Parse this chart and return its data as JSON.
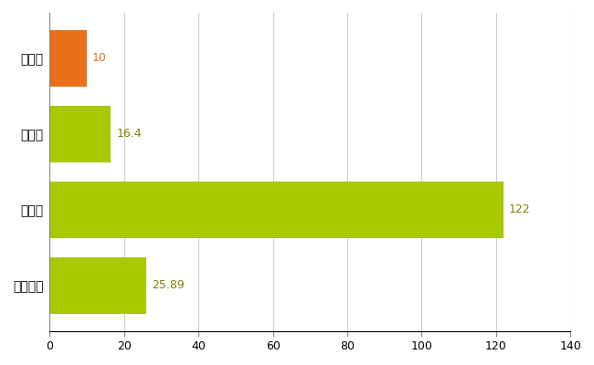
{
  "categories": [
    "鹿島市",
    "県平均",
    "県最大",
    "全国平均"
  ],
  "values": [
    10,
    16.4,
    122,
    25.89
  ],
  "bar_colors": [
    "#E8701A",
    "#A8C800",
    "#A8C800",
    "#A8C800"
  ],
  "label_color_kashima": "#E8701A",
  "label_color_others": "#808000",
  "bar_height": 0.75,
  "xlim": [
    0,
    140
  ],
  "xticks": [
    0,
    20,
    40,
    60,
    80,
    100,
    120,
    140
  ],
  "grid_color": "#cccccc",
  "background_color": "#ffffff",
  "value_labels": [
    "10",
    "16.4",
    "122",
    "25.89"
  ],
  "label_fontsize": 9,
  "tick_fontsize": 9,
  "ylabel_fontsize": 10
}
